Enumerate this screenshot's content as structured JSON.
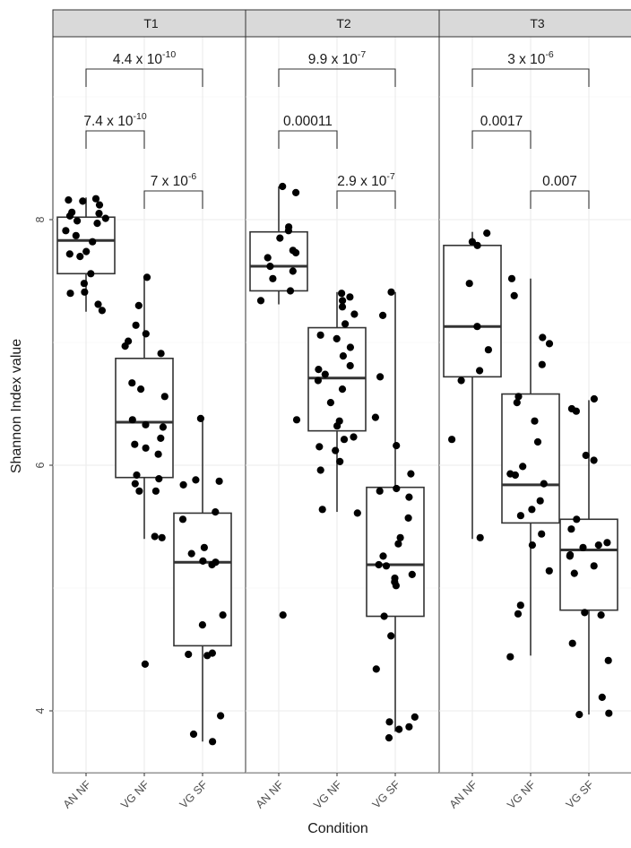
{
  "chart_data": {
    "type": "boxplot",
    "xlabel": "Condition",
    "ylabel": "Shannon Index value",
    "ylim": [
      3.5,
      9.5
    ],
    "yticks": [
      4,
      6,
      8
    ],
    "grid": true,
    "facets": [
      {
        "label": "T1",
        "groups": [
          {
            "category": "AN NF",
            "q1": 7.56,
            "median": 7.83,
            "q3": 8.02,
            "whisker_low": 7.25,
            "whisker_high": 8.18,
            "points": [
              8.17,
              8.16,
              8.15,
              8.12,
              8.06,
              8.05,
              8.03,
              8.01,
              7.99,
              7.97,
              7.91,
              7.87,
              7.82,
              7.74,
              7.72,
              7.7,
              7.56,
              7.48,
              7.41,
              7.4,
              7.31,
              7.26
            ]
          },
          {
            "category": "VG NF",
            "q1": 5.9,
            "median": 6.35,
            "q3": 6.87,
            "whisker_low": 5.4,
            "whisker_high": 7.53,
            "points": [
              7.53,
              7.3,
              7.14,
              7.07,
              7.01,
              6.97,
              6.91,
              6.67,
              6.62,
              6.56,
              6.37,
              6.33,
              6.31,
              6.22,
              6.17,
              6.14,
              6.09,
              5.92,
              5.89,
              5.85,
              5.79,
              5.79,
              5.42,
              5.41,
              4.38
            ]
          },
          {
            "category": "VG SF",
            "q1": 4.53,
            "median": 5.21,
            "q3": 5.61,
            "whisker_low": 3.75,
            "whisker_high": 6.39,
            "points": [
              6.38,
              5.88,
              5.87,
              5.84,
              5.62,
              5.56,
              5.33,
              5.28,
              5.22,
              5.21,
              5.19,
              4.78,
              4.7,
              4.47,
              4.46,
              4.45,
              3.96,
              3.81,
              3.75
            ]
          }
        ],
        "comparisons": [
          {
            "from": "AN NF",
            "to": "VG SF",
            "p": "4.4 x 10",
            "exp": "-10"
          },
          {
            "from": "AN NF",
            "to": "VG NF",
            "p": "7.4 x 10",
            "exp": "-10"
          },
          {
            "from": "VG NF",
            "to": "VG SF",
            "p": "7 x 10",
            "exp": "-6"
          }
        ]
      },
      {
        "label": "T2",
        "groups": [
          {
            "category": "AN NF",
            "q1": 7.42,
            "median": 7.62,
            "q3": 7.9,
            "whisker_low": 7.31,
            "whisker_high": 8.27,
            "points": [
              8.27,
              8.22,
              7.94,
              7.91,
              7.85,
              7.75,
              7.73,
              7.69,
              7.62,
              7.58,
              7.52,
              7.42,
              7.34,
              6.37,
              4.78
            ]
          },
          {
            "category": "VG NF",
            "q1": 6.28,
            "median": 6.71,
            "q3": 7.12,
            "whisker_low": 5.62,
            "whisker_high": 7.41,
            "points": [
              7.4,
              7.37,
              7.34,
              7.29,
              7.23,
              7.15,
              7.06,
              7.03,
              6.96,
              6.89,
              6.81,
              6.78,
              6.74,
              6.69,
              6.62,
              6.51,
              6.36,
              6.32,
              6.23,
              6.21,
              6.15,
              6.12,
              6.03,
              5.96,
              5.64,
              5.61
            ]
          },
          {
            "category": "VG SF",
            "q1": 4.77,
            "median": 5.19,
            "q3": 5.82,
            "whisker_low": 3.83,
            "whisker_high": 7.41,
            "points": [
              7.41,
              7.22,
              6.72,
              6.39,
              6.16,
              5.93,
              5.81,
              5.79,
              5.74,
              5.57,
              5.41,
              5.36,
              5.26,
              5.19,
              5.18,
              5.11,
              5.08,
              5.05,
              5.02,
              4.77,
              4.61,
              4.34,
              3.95,
              3.91,
              3.87,
              3.85,
              3.78
            ]
          }
        ],
        "comparisons": [
          {
            "from": "AN NF",
            "to": "VG SF",
            "p": "9.9 x 10",
            "exp": "-7"
          },
          {
            "from": "AN NF",
            "to": "VG NF",
            "p": "0.00011",
            "exp": ""
          },
          {
            "from": "VG NF",
            "to": "VG SF",
            "p": "2.9 x 10",
            "exp": "-7"
          }
        ]
      },
      {
        "label": "T3",
        "groups": [
          {
            "category": "AN NF",
            "q1": 6.72,
            "median": 7.13,
            "q3": 7.79,
            "whisker_low": 5.4,
            "whisker_high": 7.9,
            "points": [
              7.89,
              7.82,
              7.79,
              7.48,
              7.13,
              6.94,
              6.77,
              6.69,
              6.21,
              5.41
            ]
          },
          {
            "category": "VG NF",
            "q1": 5.53,
            "median": 5.84,
            "q3": 6.58,
            "whisker_low": 4.45,
            "whisker_high": 7.52,
            "points": [
              7.52,
              7.38,
              7.04,
              6.99,
              6.82,
              6.56,
              6.51,
              6.36,
              6.19,
              5.99,
              5.93,
              5.92,
              5.85,
              5.71,
              5.64,
              5.59,
              5.44,
              5.35,
              5.14,
              4.86,
              4.79,
              4.44
            ]
          },
          {
            "category": "VG SF",
            "q1": 4.82,
            "median": 5.31,
            "q3": 5.56,
            "whisker_low": 3.97,
            "whisker_high": 6.53,
            "points": [
              6.54,
              6.46,
              6.44,
              6.08,
              6.04,
              5.56,
              5.48,
              5.37,
              5.35,
              5.33,
              5.27,
              5.26,
              5.18,
              5.12,
              4.8,
              4.78,
              4.55,
              4.41,
              4.11,
              3.98,
              3.97
            ]
          }
        ],
        "comparisons": [
          {
            "from": "AN NF",
            "to": "VG SF",
            "p": "3 x 10",
            "exp": "-6"
          },
          {
            "from": "AN NF",
            "to": "VG NF",
            "p": "0.0017",
            "exp": ""
          },
          {
            "from": "VG NF",
            "to": "VG SF",
            "p": "0.007",
            "exp": ""
          }
        ]
      }
    ]
  }
}
